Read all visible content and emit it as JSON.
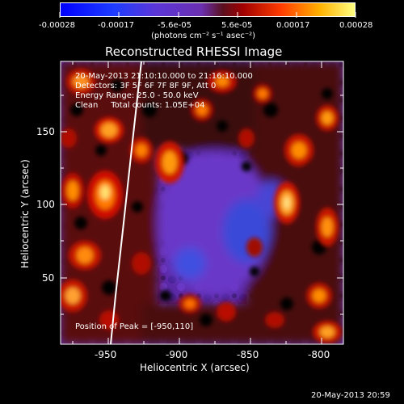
{
  "colorbar": {
    "ticks": [
      "-0.00028",
      "-0.00017",
      "-5.6e-05",
      "5.6e-05",
      "0.00017",
      "0.00028"
    ],
    "units": "(photons cm⁻² s⁻¹ asec⁻²)"
  },
  "plot": {
    "title": "Reconstructed RHESSI Image",
    "xlabel": "Heliocentric X (arcsec)",
    "ylabel": "Heliocentric Y (arcsec)",
    "xticks": [
      "-950",
      "-900",
      "-850",
      "-800"
    ],
    "yticks": [
      "150",
      "100",
      "50"
    ]
  },
  "info": {
    "time_range": "20-May-2013 21:10:10.000 to 21:16:10.000",
    "detectors": "Detectors: 3F 5F 6F 7F 8F 9F, Att 0",
    "energy": "Energy Range: 25.0 - 50.0 keV",
    "clean": "Clean     Total counts: 1.05E+04",
    "peak": "Position of Peak = [-950,110]"
  },
  "footer": {
    "timestamp": "20-May-2013 20:59"
  },
  "colors": {
    "low": "#0000ff",
    "mid": "#6a2bd6",
    "high": "#ffff80"
  }
}
